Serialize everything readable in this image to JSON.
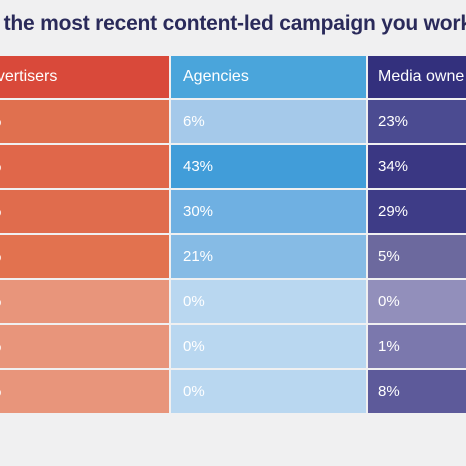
{
  "title": "r the most recent content-led campaign you worke",
  "header": {
    "col1": "dvertisers",
    "col2": "Agencies",
    "col3": "Media owne",
    "colors": [
      "#d9493a",
      "#4aa5db",
      "#33307d"
    ]
  },
  "rows": [
    {
      "c1": "%",
      "c2": "6%",
      "c3": "23%",
      "colors": [
        "#e0704f",
        "#a5c9ea",
        "#4b4b91"
      ]
    },
    {
      "c1": "%",
      "c2": "43%",
      "c3": "34%",
      "colors": [
        "#e0674a",
        "#419dd9",
        "#3a3783"
      ]
    },
    {
      "c1": "%",
      "c2": "30%",
      "c3": "29%",
      "colors": [
        "#e06c4d",
        "#6fb0e2",
        "#3e3c87"
      ]
    },
    {
      "c1": "%",
      "c2": "21%",
      "c3": "5%",
      "colors": [
        "#e2724f",
        "#86bbe5",
        "#6c699e"
      ]
    },
    {
      "c1": "%",
      "c2": "0%",
      "c3": "0%",
      "colors": [
        "#e8957b",
        "#b9d7f0",
        "#928fbb"
      ]
    },
    {
      "c1": "%",
      "c2": "0%",
      "c3": "1%",
      "colors": [
        "#e8957b",
        "#b9d7f0",
        "#7b78ad"
      ]
    },
    {
      "c1": "%",
      "c2": "0%",
      "c3": "8%",
      "colors": [
        "#e8957b",
        "#b9d7f0",
        "#5d5a9a"
      ]
    }
  ]
}
